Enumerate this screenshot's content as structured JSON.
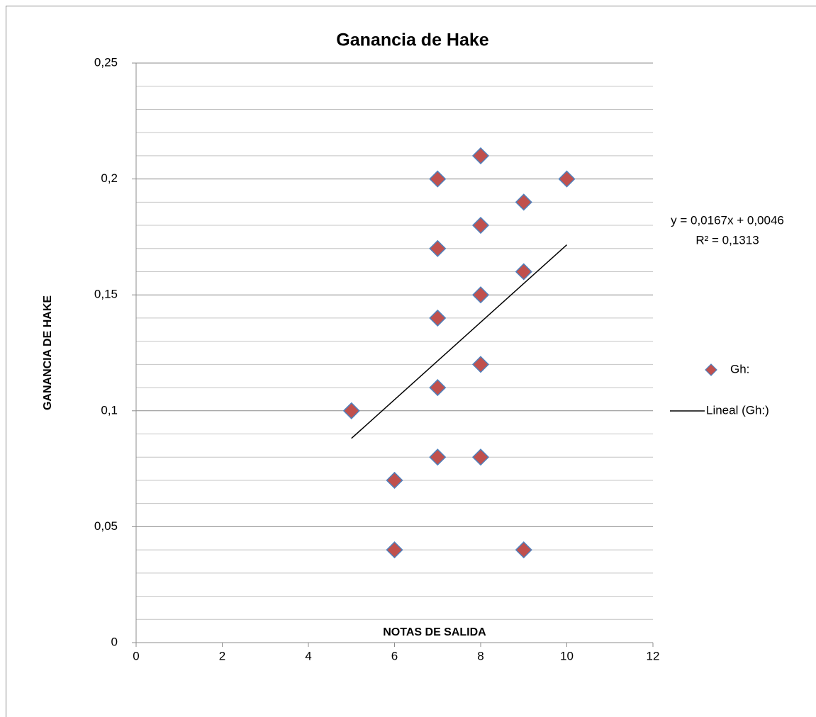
{
  "chart_data": {
    "type": "scatter",
    "title": "Ganancia  de Hake",
    "x_label": "NOTAS DE  SALIDA",
    "y_label": "GANANCIA DE HAKE",
    "x": [
      5,
      6,
      6,
      7,
      7,
      7,
      7,
      7,
      8,
      8,
      8,
      8,
      8,
      9,
      9,
      9,
      10
    ],
    "series": [
      {
        "name": "Gh:",
        "color": "#c0504d",
        "edge_color": "#4f81bd",
        "values": [
          0.1,
          0.07,
          0.04,
          0.2,
          0.17,
          0.14,
          0.11,
          0.08,
          0.21,
          0.18,
          0.15,
          0.12,
          0.08,
          0.19,
          0.16,
          0.04,
          0.2
        ]
      }
    ],
    "trendline": {
      "name": "Lineal (Gh:)",
      "color": "#000000",
      "slope": 0.0167,
      "intercept": 0.0046,
      "equation": "y = 0,0167x + 0,0046",
      "r2_label": "R² = 0,1313"
    },
    "xlim": [
      0,
      12
    ],
    "xticks": [
      0,
      2,
      4,
      6,
      8,
      10,
      12
    ],
    "ylim": [
      0,
      0.25
    ],
    "yticks": [
      0,
      {
        "value": 0.05,
        "label": "0,05"
      },
      {
        "value": 0.1,
        "label": "0,1"
      },
      {
        "value": 0.15,
        "label": "0,15"
      },
      {
        "value": 0.2,
        "label": "0,2"
      },
      {
        "value": 0.25,
        "label": "0,25"
      }
    ],
    "minor_yticks": [
      0.01,
      0.02,
      0.03,
      0.04,
      0.06,
      0.07,
      0.08,
      0.09,
      0.11,
      0.12,
      0.13,
      0.14,
      0.16,
      0.17,
      0.18,
      0.19,
      0.21,
      0.22,
      0.23,
      0.24
    ],
    "grid": true,
    "legend": "right"
  }
}
